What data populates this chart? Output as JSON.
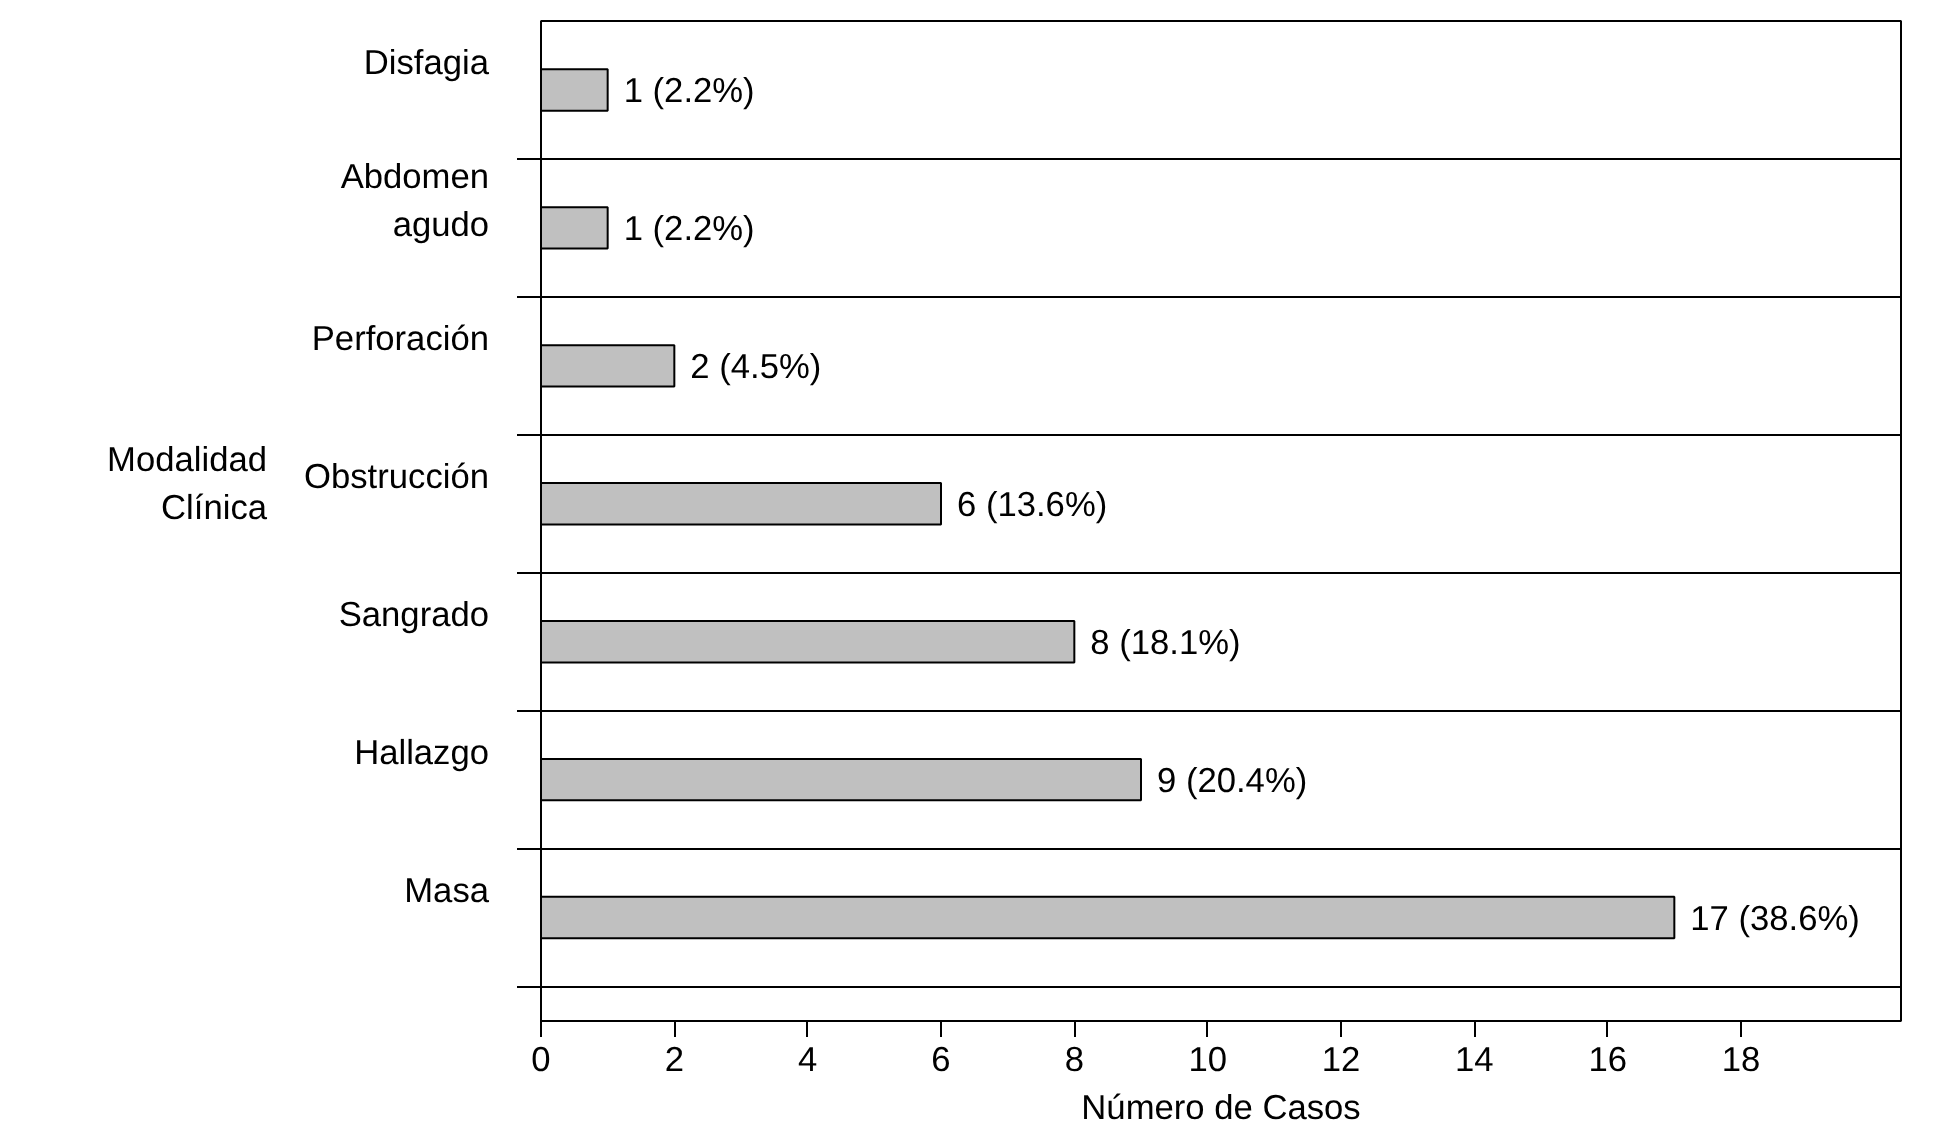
{
  "chart_data": {
    "type": "bar",
    "orientation": "horizontal",
    "categories": [
      "Disfagia",
      "Abdomen agudo",
      "Perforación",
      "Obstrucción",
      "Sangrado",
      "Hallazgo",
      "Masa"
    ],
    "values": [
      1,
      1,
      2,
      6,
      8,
      9,
      17
    ],
    "value_labels": [
      "1 (2.2%)",
      "1 (2.2%)",
      "2 (4.5%)",
      "6 (13.6%)",
      "8 (18.1%)",
      "9 (20.4%)",
      "17 (38.6%)"
    ],
    "color": "#c0c0c0",
    "xlim": [
      0,
      20.4
    ],
    "xticks": [
      0,
      2,
      4,
      6,
      8,
      10,
      12,
      14,
      16,
      18
    ],
    "xlabel": "Número de Casos",
    "ylabel": "Modalidad Clínica",
    "grid": "y"
  }
}
